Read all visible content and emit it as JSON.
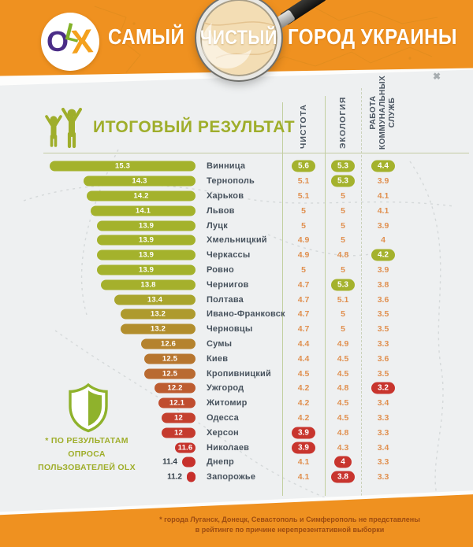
{
  "header": {
    "logo": {
      "o": "O",
      "l": "L",
      "x": "X"
    },
    "title_left": "САМЫЙ",
    "title_lens": "ЧИСТЫЙ",
    "title_right": "ГОРОД УКРАИНЫ"
  },
  "section": {
    "title": "ИТОГОВЫЙ РЕЗУЛЬТАТ"
  },
  "columns_display": [
    "ЧИСТОТА",
    "ЭКОЛОГИЯ",
    "РАБОТА\nКОММУНАЛЬНЫХ\nСЛУЖБ"
  ],
  "note": {
    "line1": "* ПО РЕЗУЛЬТАТАМ",
    "line2": "ОПРОСА",
    "line3": "ПОЛЬЗОВАТЕЛЕЙ OLX"
  },
  "footer": {
    "line1": "* города Луганск, Донецк, Севастополь и Симферополь не представлены",
    "line2": "в рейтинге по причине нерепрезентативной выборки"
  },
  "colors": {
    "accent_orange": "#ef9120",
    "olive_green": "#a4b22d",
    "best_badge": "#a4b22d",
    "worst_badge": "#c8352e",
    "value_text": "#e09050",
    "city_text": "#47525d"
  },
  "chart_data": {
    "type": "bar",
    "orientation": "horizontal",
    "title": "ИТОГОВЫЙ РЕЗУЛЬТАТ",
    "value_range": [
      11,
      15.5
    ],
    "legend_note": "* по результатам опроса пользователей OLX",
    "columns": [
      "ЧИСТОТА",
      "ЭКОЛОГИЯ",
      "РАБОТА КОММУНАЛЬНЫХ СЛУЖБ"
    ],
    "highlight_meaning": {
      "best": "лучший показатель (зелёный)",
      "worst": "худший показатель (красный)"
    },
    "rows": [
      {
        "city": "Винница",
        "total": "15.3",
        "bar_color": "#a4b22c",
        "scores": [
          {
            "v": "5.6",
            "hl": "best"
          },
          {
            "v": "5.3",
            "hl": "best"
          },
          {
            "v": "4.4",
            "hl": "best"
          }
        ]
      },
      {
        "city": "Тернополь",
        "total": "14.3",
        "bar_color": "#a4b22c",
        "scores": [
          {
            "v": "5.1"
          },
          {
            "v": "5.3",
            "hl": "best"
          },
          {
            "v": "3.9"
          }
        ]
      },
      {
        "city": "Харьков",
        "total": "14.2",
        "bar_color": "#a4b22c",
        "scores": [
          {
            "v": "5.1"
          },
          {
            "v": "5"
          },
          {
            "v": "4.1"
          }
        ]
      },
      {
        "city": "Львов",
        "total": "14.1",
        "bar_color": "#a4b22c",
        "scores": [
          {
            "v": "5"
          },
          {
            "v": "5"
          },
          {
            "v": "4.1"
          }
        ]
      },
      {
        "city": "Луцк",
        "total": "13.9",
        "bar_color": "#a4b22c",
        "scores": [
          {
            "v": "5"
          },
          {
            "v": "5"
          },
          {
            "v": "3.9"
          }
        ]
      },
      {
        "city": "Хмельницкий",
        "total": "13.9",
        "bar_color": "#a4b22c",
        "scores": [
          {
            "v": "4.9"
          },
          {
            "v": "5"
          },
          {
            "v": "4"
          }
        ]
      },
      {
        "city": "Черкассы",
        "total": "13.9",
        "bar_color": "#a4b22c",
        "scores": [
          {
            "v": "4.9"
          },
          {
            "v": "4.8"
          },
          {
            "v": "4.2",
            "hl": "best"
          }
        ]
      },
      {
        "city": "Ровно",
        "total": "13.9",
        "bar_color": "#a4b22c",
        "scores": [
          {
            "v": "5"
          },
          {
            "v": "5"
          },
          {
            "v": "3.9"
          }
        ]
      },
      {
        "city": "Чернигов",
        "total": "13.8",
        "bar_color": "#a5b02c",
        "scores": [
          {
            "v": "4.7"
          },
          {
            "v": "5.3",
            "hl": "best"
          },
          {
            "v": "3.8"
          }
        ]
      },
      {
        "city": "Полтава",
        "total": "13.4",
        "bar_color": "#a9a52d",
        "scores": [
          {
            "v": "4.7"
          },
          {
            "v": "5.1"
          },
          {
            "v": "3.6"
          }
        ]
      },
      {
        "city": "Ивано-Франковск",
        "total": "13.2",
        "bar_color": "#ae9a2d",
        "scores": [
          {
            "v": "4.7"
          },
          {
            "v": "5"
          },
          {
            "v": "3.5"
          }
        ]
      },
      {
        "city": "Черновцы",
        "total": "13.2",
        "bar_color": "#b28e2d",
        "scores": [
          {
            "v": "4.7"
          },
          {
            "v": "5"
          },
          {
            "v": "3.5"
          }
        ]
      },
      {
        "city": "Сумы",
        "total": "12.6",
        "bar_color": "#b5832e",
        "scores": [
          {
            "v": "4.4"
          },
          {
            "v": "4.9"
          },
          {
            "v": "3.3"
          }
        ]
      },
      {
        "city": "Киев",
        "total": "12.5",
        "bar_color": "#b7762f",
        "scores": [
          {
            "v": "4.4"
          },
          {
            "v": "4.5"
          },
          {
            "v": "3.6"
          }
        ]
      },
      {
        "city": "Кропивницкий",
        "total": "12.5",
        "bar_color": "#b96a31",
        "scores": [
          {
            "v": "4.5"
          },
          {
            "v": "4.5"
          },
          {
            "v": "3.5"
          }
        ]
      },
      {
        "city": "Ужгород",
        "total": "12.2",
        "bar_color": "#bd5c30",
        "scores": [
          {
            "v": "4.2"
          },
          {
            "v": "4.8"
          },
          {
            "v": "3.2",
            "hl": "worst"
          }
        ]
      },
      {
        "city": "Житомир",
        "total": "12.1",
        "bar_color": "#c04d2f",
        "scores": [
          {
            "v": "4.2"
          },
          {
            "v": "4.5"
          },
          {
            "v": "3.4"
          }
        ]
      },
      {
        "city": "Одесса",
        "total": "12",
        "bar_color": "#c4402e",
        "scores": [
          {
            "v": "4.2"
          },
          {
            "v": "4.5"
          },
          {
            "v": "3.3"
          }
        ]
      },
      {
        "city": "Херсон",
        "total": "12",
        "bar_color": "#c53a2e",
        "scores": [
          {
            "v": "3.9",
            "hl": "worst"
          },
          {
            "v": "4.8"
          },
          {
            "v": "3.3"
          }
        ]
      },
      {
        "city": "Николаев",
        "total": "11.6",
        "bar_color": "#c6342d",
        "scores": [
          {
            "v": "3.9",
            "hl": "worst"
          },
          {
            "v": "4.3"
          },
          {
            "v": "3.4"
          }
        ]
      },
      {
        "city": "Днепр",
        "total": "11.4",
        "bar_color": "#c7312c",
        "scores": [
          {
            "v": "4.1"
          },
          {
            "v": "4",
            "hl": "worst"
          },
          {
            "v": "3.3"
          }
        ]
      },
      {
        "city": "Запорожье",
        "total": "11.2",
        "bar_color": "#c72f2b",
        "scores": [
          {
            "v": "4.1"
          },
          {
            "v": "3.8",
            "hl": "worst"
          },
          {
            "v": "3.3"
          }
        ]
      }
    ]
  }
}
